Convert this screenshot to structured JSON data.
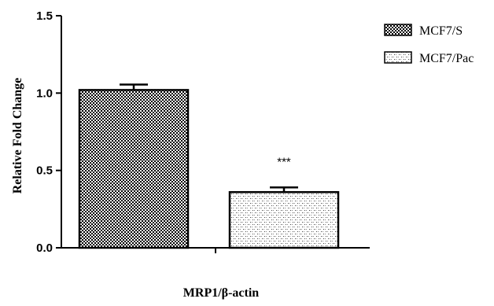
{
  "chart_data": {
    "type": "bar",
    "categories": [
      "MCF7/S",
      "MCF7/Pac"
    ],
    "values": [
      1.02,
      0.36
    ],
    "errors": [
      0.035,
      0.03
    ],
    "annotations": [
      "",
      "***"
    ],
    "title": "",
    "xlabel": "MRP1/β-actin",
    "ylabel": "Relative Fold Change",
    "ylim": [
      0,
      1.5
    ],
    "yticks": [
      "0.0",
      "0.5",
      "1.0",
      "1.5"
    ],
    "grid": false,
    "legend_position": "top-right",
    "colors": {
      "bar_fill": "#ffffff",
      "bar_pattern": "#000000",
      "axis": "#000000"
    },
    "series_patterns": [
      "dense-checker",
      "light-dotted"
    ]
  }
}
